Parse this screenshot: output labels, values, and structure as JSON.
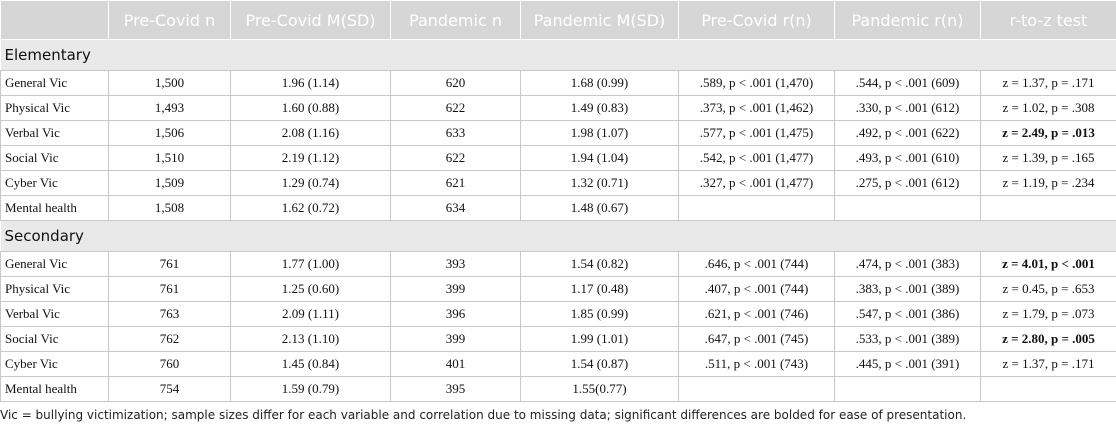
{
  "table": {
    "header": [
      "Pre-Covid n",
      "Pre-Covid M(SD)",
      "Pandemic n",
      "Pandemic M(SD)",
      "Pre-Covid r(n)",
      "Pandemic r(n)",
      "r-to-z test"
    ],
    "sections": [
      {
        "title": "Elementary",
        "rows": [
          [
            "General Vic",
            "1,500",
            "1.96 (1.14)",
            "620",
            "1.68 (0.99)",
            ".589, p < .001 (1,470)",
            ".544, p < .001 (609)",
            "z = 1.37, p = .171"
          ],
          [
            "Physical Vic",
            "1,493",
            "1.60 (0.88)",
            "622",
            "1.49 (0.83)",
            ".373, p < .001 (1,462)",
            ".330, p < .001 (612)",
            "z = 1.02, p = .308"
          ],
          [
            "Verbal Vic",
            "1,506",
            "2.08 (1.16)",
            "633",
            "1.98 (1.07)",
            ".577, p < .001 (1,475)",
            ".492, p < .001 (622)",
            "z = 2.49, p = .013"
          ],
          [
            "Social Vic",
            "1,510",
            "2.19 (1.12)",
            "622",
            "1.94 (1.04)",
            ".542, p < .001 (1,477)",
            ".493, p < .001 (610)",
            "z = 1.39, p = .165"
          ],
          [
            "Cyber Vic",
            "1,509",
            "1.29 (0.74)",
            "621",
            "1.32 (0.71)",
            ".327, p < .001 (1,477)",
            ".275, p < .001 (612)",
            "z = 1.19, p = .234"
          ],
          [
            "Mental health",
            "1,508",
            "1.62 (0.72)",
            "634",
            "1.48 (0.67)",
            null,
            null,
            null
          ]
        ]
      },
      {
        "title": "Secondary",
        "rows": [
          [
            "General Vic",
            "761",
            "1.77 (1.00)",
            "393",
            "1.54 (0.82)",
            ".646, p < .001 (744)",
            ".474, p < .001 (383)",
            "z = 4.01, p < .001"
          ],
          [
            "Physical Vic",
            "761",
            "1.25 (0.60)",
            "399",
            "1.17 (0.48)",
            ".407, p < .001 (744)",
            ".383, p < .001 (389)",
            "z = 0.45, p = .653"
          ],
          [
            "Verbal Vic",
            "763",
            "2.09 (1.11)",
            "396",
            "1.85 (0.99)",
            ".621, p < .001 (746)",
            ".547, p < .001 (386)",
            "z = 1.79, p = .073"
          ],
          [
            "Social Vic",
            "762",
            "2.13 (1.10)",
            "399",
            "1.99 (1.01)",
            ".647, p < .001 (745)",
            ".533, p < .001 (389)",
            "z = 2.80, p = .005"
          ],
          [
            "Cyber Vic",
            "760",
            "1.45 (0.84)",
            "401",
            "1.54 (0.87)",
            ".511, p < .001 (743)",
            ".445, p < .001 (391)",
            "z = 1.37, p = .171"
          ],
          [
            "Mental health",
            "754",
            "1.59 (0.79)",
            "395",
            "1.55(0.77)",
            null,
            null,
            null
          ]
        ]
      }
    ],
    "note": "Vic = bullying victimization; sample sizes differ for each variable and correlation due to missing data; significant differences are bolded for ease of presentation."
  }
}
